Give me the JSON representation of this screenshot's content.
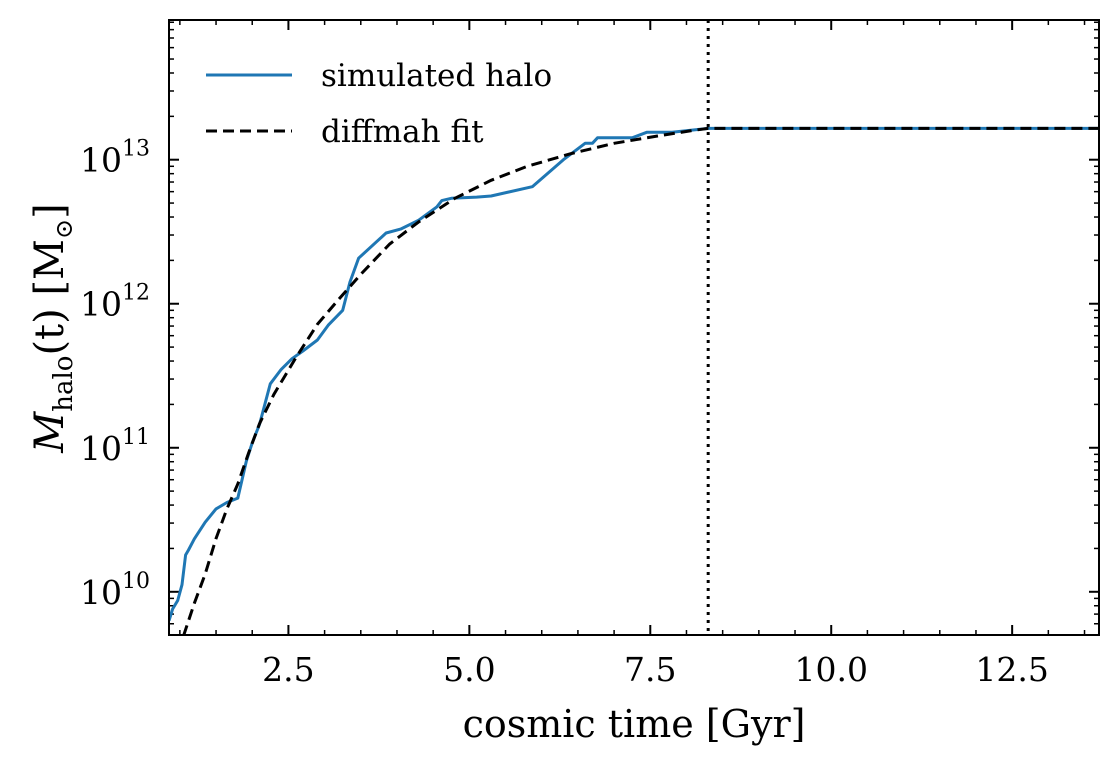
{
  "chart_data": {
    "type": "line",
    "xlabel": "cosmic time [Gyr]",
    "ylabel": "M_halo(t) [M_⊙]",
    "ylabel_main": "M",
    "ylabel_sub": "halo",
    "ylabel_rest": "(t) [M",
    "ylabel_sun": "⊙",
    "ylabel_close": "]",
    "xlim": [
      0.85,
      13.7
    ],
    "ylim_log10": [
      9.7,
      13.97
    ],
    "yscale": "log",
    "xticks": [
      2.5,
      5.0,
      7.5,
      10.0,
      12.5
    ],
    "xtick_labels": [
      "2.5",
      "5.0",
      "7.5",
      "10.0",
      "12.5"
    ],
    "yticks_exp": [
      10,
      11,
      12,
      13
    ],
    "ytick_base": "10",
    "ytick_exps": [
      "10",
      "11",
      "12",
      "13"
    ],
    "vline_x": 8.3,
    "legend_position": "top-left",
    "series": [
      {
        "name": "simulated halo",
        "style": "solid",
        "color": "#1f77b4",
        "x": [
          0.85,
          0.9,
          0.97,
          1.03,
          1.08,
          1.12,
          1.2,
          1.35,
          1.5,
          1.65,
          1.8,
          1.92,
          2.0,
          2.1,
          2.25,
          2.4,
          2.55,
          2.7,
          2.9,
          3.05,
          3.25,
          3.35,
          3.47,
          3.85,
          4.05,
          4.3,
          4.55,
          4.62,
          4.75,
          5.1,
          5.3,
          5.87,
          6.3,
          6.6,
          6.7,
          6.77,
          7.25,
          7.45,
          7.8,
          8.3,
          13.7
        ],
        "y": [
          6300000000.0,
          7600000000.0,
          8700000000.0,
          11200000000.0,
          18000000000.0,
          19500000000.0,
          23300000000.0,
          30400000000.0,
          37600000000.0,
          41700000000.0,
          44700000000.0,
          81000000000.0,
          108000000000.0,
          145000000000.0,
          278000000000.0,
          350000000000.0,
          415000000000.0,
          470000000000.0,
          560000000000.0,
          710000000000.0,
          900000000000.0,
          1410000000000.0,
          2070000000000.0,
          3100000000000.0,
          3300000000000.0,
          3800000000000.0,
          4700000000000.0,
          5200000000000.0,
          5400000000000.0,
          5500000000000.0,
          5600000000000.0,
          6500000000000.0,
          10000000000000.0,
          13000000000000.0,
          13000000000000.0,
          14200000000000.0,
          14200000000000.0,
          15500000000000.0,
          15500000000000.0,
          16500000000000.0,
          16500000000000.0
        ]
      },
      {
        "name": "diffmah fit",
        "style": "dashed",
        "color": "#000000",
        "x": [
          1.05,
          1.2,
          1.35,
          1.5,
          1.65,
          1.8,
          1.95,
          2.1,
          2.3,
          2.6,
          2.9,
          3.2,
          3.5,
          3.9,
          4.3,
          4.8,
          5.3,
          5.8,
          6.4,
          7.0,
          7.6,
          8.1,
          8.3,
          9.0,
          10.0,
          11.0,
          12.0,
          13.0,
          13.7
        ],
        "y": [
          4940000000.0,
          8300000000.0,
          13300000000.0,
          23400000000.0,
          37600000000.0,
          56000000000.0,
          92000000000.0,
          147000000000.0,
          235000000000.0,
          420000000000.0,
          720000000000.0,
          1080000000000.0,
          1600000000000.0,
          2600000000000.0,
          3700000000000.0,
          5400000000000.0,
          7200000000000.0,
          9000000000000.0,
          11000000000000.0,
          13000000000000.0,
          14600000000000.0,
          16000000000000.0,
          16500000000000.0,
          16500000000000.0,
          16500000000000.0,
          16500000000000.0,
          16500000000000.0,
          16500000000000.0,
          16500000000000.0
        ]
      }
    ]
  }
}
